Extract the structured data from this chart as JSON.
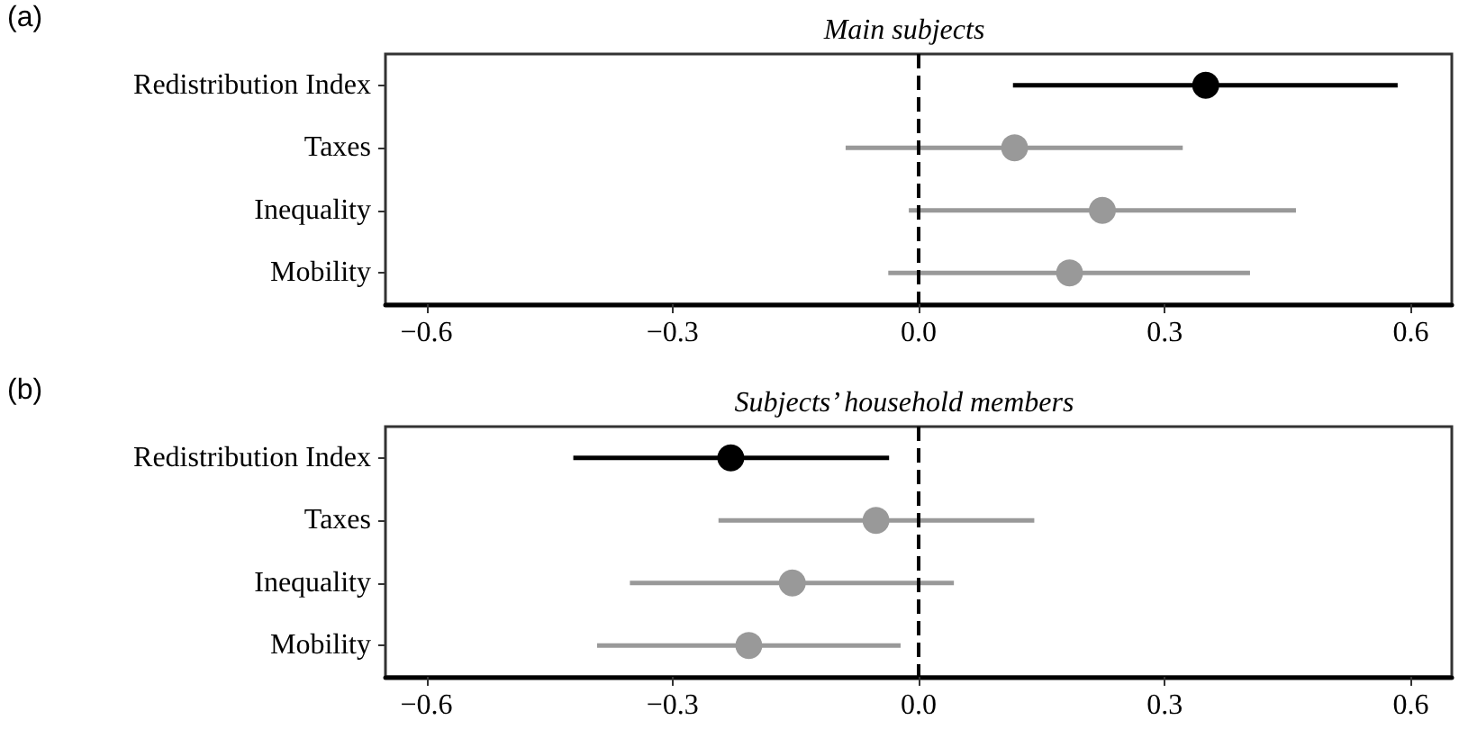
{
  "chart_data": [
    {
      "type": "scatter",
      "orientation": "horizontal",
      "title": "Main subjects",
      "annotations": [
        "(a)"
      ],
      "categories": [
        "Redistribution Index",
        "Taxes",
        "Inequality",
        "Mobility"
      ],
      "values": [
        0.35,
        0.117,
        0.224,
        0.184
      ],
      "errors": [
        [
          0.115,
          0.584
        ],
        [
          -0.089,
          0.322
        ],
        [
          -0.012,
          0.46
        ],
        [
          -0.037,
          0.404
        ]
      ],
      "colors": [
        "#000000",
        "#999999",
        "#999999",
        "#999999"
      ],
      "xlim": [
        -0.65,
        0.65
      ],
      "xticks": [
        {
          "value": -0.6,
          "label": "−0.6"
        },
        {
          "value": -0.3,
          "label": "−0.3"
        },
        {
          "value": 0,
          "label": "0.0"
        },
        {
          "value": 0.3,
          "label": "0.3"
        },
        {
          "value": 0.6,
          "label": "0.6"
        }
      ],
      "ref_lines": [
        {
          "axis": "x",
          "value": 0,
          "label": null,
          "color": "#000000",
          "line_style": "dashed"
        }
      ],
      "grid": false,
      "marker": "circle"
    },
    {
      "type": "scatter",
      "orientation": "horizontal",
      "title": "Subjects’ household members",
      "annotations": [
        "(b)"
      ],
      "categories": [
        "Redistribution Index",
        "Taxes",
        "Inequality",
        "Mobility"
      ],
      "values": [
        -0.229,
        -0.052,
        -0.154,
        -0.207
      ],
      "errors": [
        [
          -0.421,
          -0.036
        ],
        [
          -0.244,
          0.141
        ],
        [
          -0.352,
          0.043
        ],
        [
          -0.392,
          -0.022
        ]
      ],
      "colors": [
        "#000000",
        "#999999",
        "#999999",
        "#999999"
      ],
      "xlim": [
        -0.65,
        0.65
      ],
      "xticks": [
        {
          "value": -0.6,
          "label": "−0.6"
        },
        {
          "value": -0.3,
          "label": "−0.3"
        },
        {
          "value": 0,
          "label": "0.0"
        },
        {
          "value": 0.3,
          "label": "0.3"
        },
        {
          "value": 0.6,
          "label": "0.6"
        }
      ],
      "ref_lines": [
        {
          "axis": "x",
          "value": 0,
          "label": null,
          "color": "#000000",
          "line_style": "dashed"
        }
      ],
      "grid": false,
      "marker": "circle"
    }
  ]
}
